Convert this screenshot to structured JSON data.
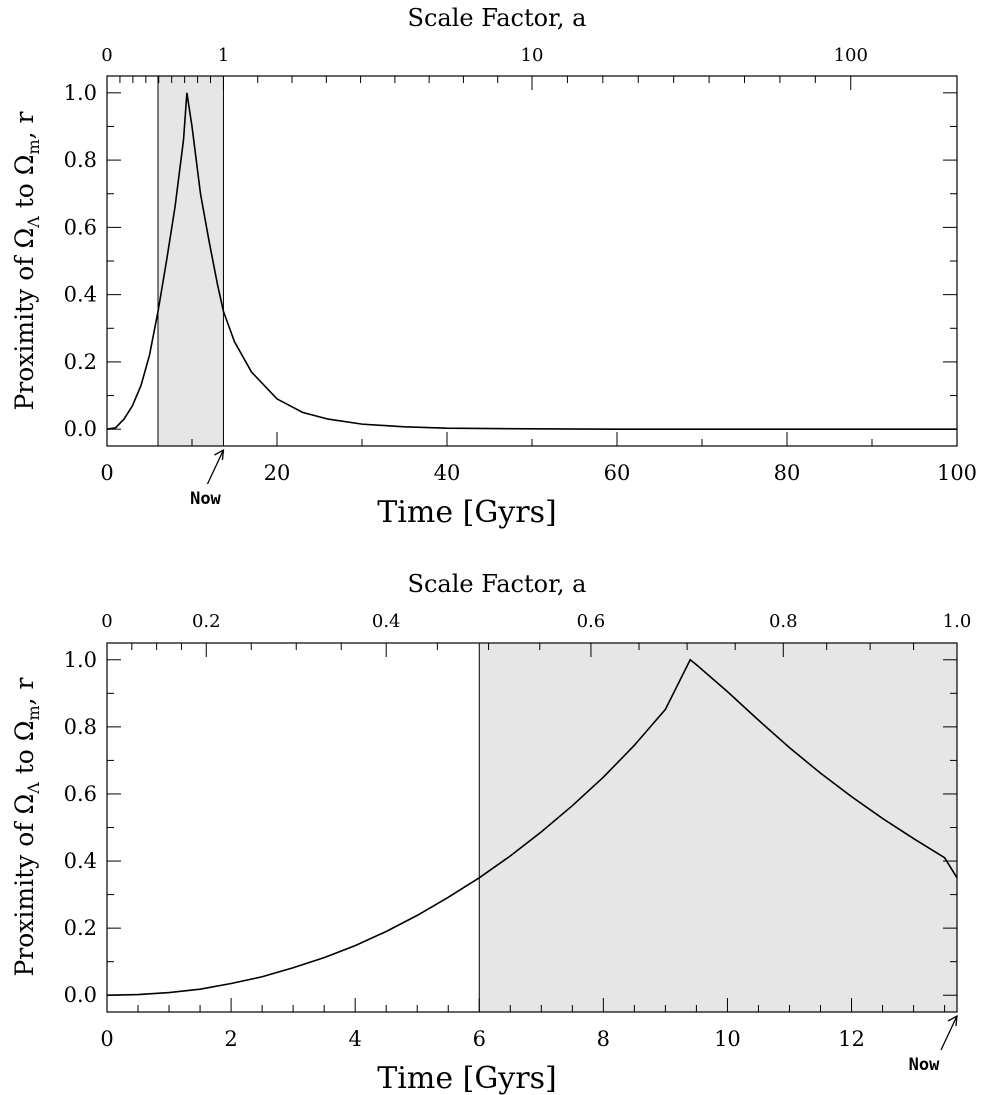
{
  "figure": {
    "ylabel_parts": [
      "Proximity of Ω",
      "Λ",
      " to Ω",
      "m",
      ", r"
    ],
    "shade_color": "#e6e6e6",
    "line_color": "#000000"
  },
  "chart_data": [
    {
      "type": "line",
      "top_xlabel": "Scale Factor, a",
      "xlabel": "Time [Gyrs]",
      "ylabel": "Proximity of ΩΛ to Ωm, r",
      "xlim": [
        0,
        100
      ],
      "ylim": [
        -0.05,
        1.05
      ],
      "x_ticks": [
        0,
        20,
        40,
        60,
        80,
        100
      ],
      "x_tick_labels": [
        "0",
        "20",
        "40",
        "60",
        "80",
        "100"
      ],
      "y_ticks": [
        0.0,
        0.2,
        0.4,
        0.6,
        0.8,
        1.0
      ],
      "y_tick_labels": [
        "0.0",
        "0.2",
        "0.4",
        "0.6",
        "0.8",
        "1.0"
      ],
      "top_ticks": [
        {
          "label": "0",
          "t": 0
        },
        {
          "label": "1",
          "t": 13.7
        },
        {
          "label": "10",
          "t": 50
        },
        {
          "label": "100",
          "t": 87.5
        }
      ],
      "shaded_region": {
        "x": [
          6.0,
          13.7
        ]
      },
      "annotations": [
        {
          "text": "Now",
          "x": 13.7
        }
      ],
      "series": [
        {
          "x": [
            0,
            1,
            2,
            3,
            4,
            5,
            6,
            7,
            8,
            9,
            9.4,
            10,
            11,
            12,
            13,
            13.7,
            15,
            17,
            20,
            23,
            26,
            30,
            35,
            40,
            50,
            60,
            80,
            100
          ],
          "y": [
            0.0,
            0.004,
            0.03,
            0.07,
            0.13,
            0.22,
            0.35,
            0.5,
            0.66,
            0.86,
            1.0,
            0.9,
            0.7,
            0.56,
            0.43,
            0.35,
            0.26,
            0.17,
            0.09,
            0.05,
            0.03,
            0.015,
            0.007,
            0.003,
            0.001,
            0.0,
            0.0,
            0.0
          ]
        }
      ]
    },
    {
      "type": "line",
      "top_xlabel": "Scale Factor, a",
      "xlabel": "Time [Gyrs]",
      "ylabel": "Proximity of ΩΛ to Ωm, r",
      "xlim": [
        0,
        13.7
      ],
      "ylim": [
        -0.05,
        1.05
      ],
      "x_ticks": [
        0,
        2,
        4,
        6,
        8,
        10,
        12
      ],
      "x_tick_labels": [
        "0",
        "2",
        "4",
        "6",
        "8",
        "10",
        "12"
      ],
      "y_ticks": [
        0.0,
        0.2,
        0.4,
        0.6,
        0.8,
        1.0
      ],
      "y_tick_labels": [
        "0.0",
        "0.2",
        "0.4",
        "0.6",
        "0.8",
        "1.0"
      ],
      "top_ticks": [
        {
          "label": "0",
          "t": 0
        },
        {
          "label": "0.2",
          "t": 1.6
        },
        {
          "label": "0.4",
          "t": 4.5
        },
        {
          "label": "0.6",
          "t": 7.8
        },
        {
          "label": "0.8",
          "t": 10.9
        },
        {
          "label": "1.0",
          "t": 13.7
        }
      ],
      "shaded_region": {
        "x": [
          6.0,
          13.7
        ]
      },
      "annotations": [
        {
          "text": "Now",
          "x": 13.7
        }
      ],
      "series": [
        {
          "x": [
            0,
            0.5,
            1,
            1.5,
            2,
            2.5,
            3,
            3.5,
            4,
            4.5,
            5,
            5.5,
            6,
            6.5,
            7,
            7.5,
            8,
            8.5,
            9,
            9.4,
            9.5,
            10,
            10.5,
            11,
            11.5,
            12,
            12.5,
            13,
            13.5,
            13.7
          ],
          "y": [
            0.0,
            0.002,
            0.008,
            0.018,
            0.035,
            0.055,
            0.082,
            0.112,
            0.148,
            0.19,
            0.238,
            0.292,
            0.35,
            0.415,
            0.487,
            0.565,
            0.65,
            0.745,
            0.852,
            1.0,
            0.985,
            0.905,
            0.82,
            0.738,
            0.662,
            0.592,
            0.527,
            0.467,
            0.41,
            0.35
          ]
        }
      ]
    }
  ]
}
